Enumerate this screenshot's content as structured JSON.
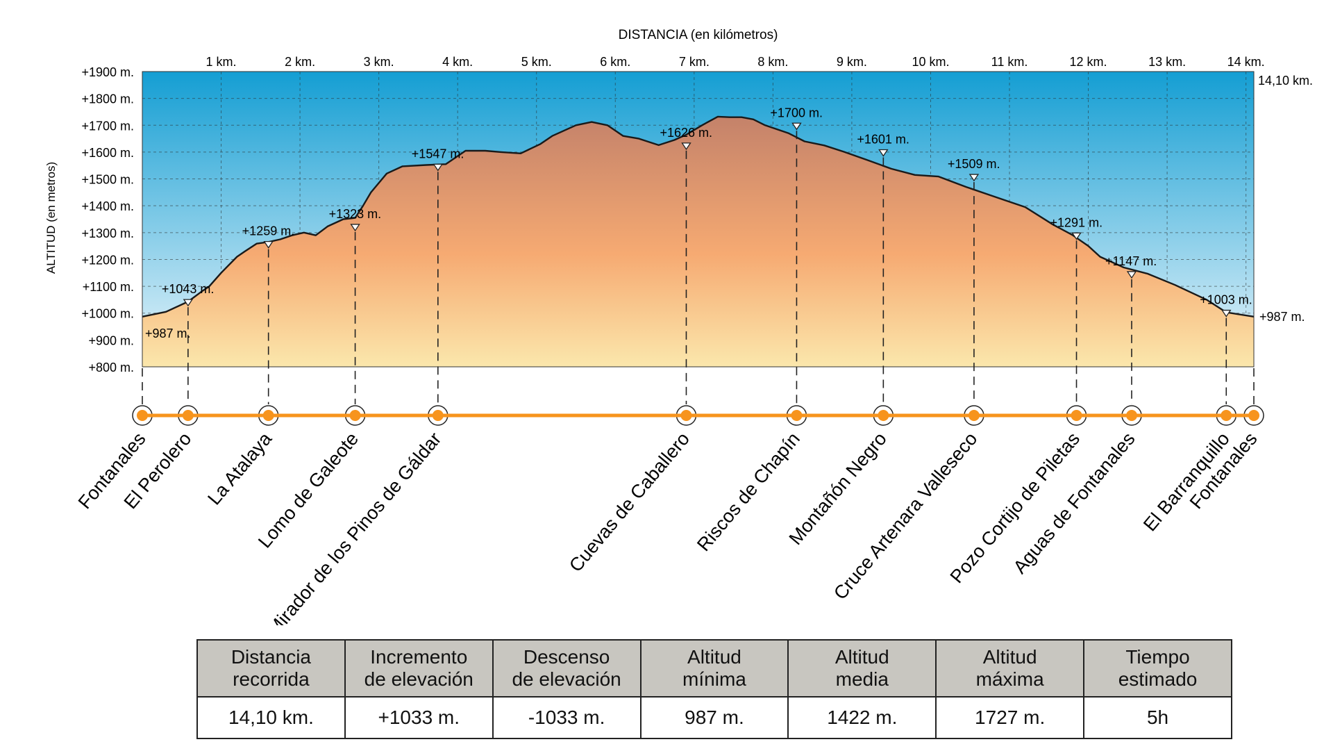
{
  "chart_data": {
    "type": "area",
    "title": "DISTANCIA (en kilómetros)",
    "xlabel": "DISTANCIA (en kilómetros)",
    "ylabel": "ALTITUD (en metros)",
    "xlim": [
      0,
      14.1
    ],
    "ylim": [
      800,
      1900
    ],
    "total_distance_label": "14,10 km.",
    "end_altitude_label": "+987 m.",
    "x_ticks": [
      1,
      2,
      3,
      4,
      5,
      6,
      7,
      8,
      9,
      10,
      11,
      12,
      13,
      14
    ],
    "x_tick_labels": [
      "1 km.",
      "2 km.",
      "3 km.",
      "4 km.",
      "5 km.",
      "6 km.",
      "7 km.",
      "8 km.",
      "9 km.",
      "10 km.",
      "11 km.",
      "12 km.",
      "13 km.",
      "14 km."
    ],
    "y_ticks": [
      800,
      900,
      1000,
      1100,
      1200,
      1300,
      1400,
      1500,
      1600,
      1700,
      1800,
      1900
    ],
    "y_tick_labels": [
      "+800 m.",
      "+900 m.",
      "+1000 m.",
      "+1100 m.",
      "+1200 m.",
      "+1300 m.",
      "+1400 m.",
      "+1500 m.",
      "+1600 m.",
      "+1700 m.",
      "+1800 m.",
      "+1900 m."
    ],
    "profile": {
      "x": [
        0,
        0.3,
        0.58,
        0.75,
        0.85,
        1.0,
        1.2,
        1.3,
        1.45,
        1.6,
        1.75,
        1.9,
        2.05,
        2.2,
        2.35,
        2.55,
        2.7,
        2.8,
        2.9,
        3.1,
        3.3,
        3.6,
        3.85,
        4.1,
        4.35,
        4.55,
        4.8,
        5.05,
        5.2,
        5.5,
        5.7,
        5.9,
        6.1,
        6.3,
        6.55,
        6.75,
        6.9,
        7.1,
        7.3,
        7.45,
        7.6,
        7.75,
        7.9,
        8.2,
        8.4,
        8.65,
        8.9,
        9.2,
        9.5,
        9.8,
        10.1,
        10.45,
        10.75,
        10.95,
        11.2,
        11.55,
        11.8,
        12.0,
        12.15,
        12.45,
        12.75,
        13.1,
        13.5,
        13.75,
        14.1
      ],
      "y": [
        987,
        1005,
        1043,
        1080,
        1100,
        1150,
        1210,
        1230,
        1259,
        1265,
        1275,
        1290,
        1300,
        1290,
        1323,
        1350,
        1355,
        1400,
        1450,
        1520,
        1547,
        1552,
        1555,
        1605,
        1605,
        1600,
        1595,
        1630,
        1660,
        1700,
        1712,
        1700,
        1660,
        1650,
        1626,
        1645,
        1665,
        1700,
        1732,
        1730,
        1730,
        1722,
        1700,
        1670,
        1640,
        1625,
        1601,
        1570,
        1538,
        1515,
        1509,
        1470,
        1440,
        1420,
        1395,
        1330,
        1291,
        1250,
        1210,
        1170,
        1147,
        1105,
        1050,
        1003,
        987
      ]
    },
    "waypoints": [
      {
        "name": "Fontanales",
        "km": 0.0,
        "alt": 987,
        "label": "+987 m."
      },
      {
        "name": "El Perolero",
        "km": 0.58,
        "alt": 1043,
        "label": "+1043 m."
      },
      {
        "name": "La Atalaya",
        "km": 1.6,
        "alt": 1259,
        "label": "+1259 m."
      },
      {
        "name": "Lomo de Galeote",
        "km": 2.7,
        "alt": 1323,
        "label": "+1323 m."
      },
      {
        "name": "Mirador de los Pinos de Gáldar",
        "km": 3.75,
        "alt": 1547,
        "label": "+1547 m."
      },
      {
        "name": "Cuevas de Caballero",
        "km": 6.9,
        "alt": 1626,
        "label": "+1626 m."
      },
      {
        "name": "Riscos de Chapín",
        "km": 8.3,
        "alt": 1700,
        "label": "+1700 m."
      },
      {
        "name": "Montañón Negro",
        "km": 9.4,
        "alt": 1601,
        "label": "+1601 m."
      },
      {
        "name": "Cruce Artenara Valleseco",
        "km": 10.55,
        "alt": 1509,
        "label": "+1509 m."
      },
      {
        "name": "Pozo Cortijo de Piletas",
        "km": 11.85,
        "alt": 1291,
        "label": "+1291 m."
      },
      {
        "name": "Aguas de Fontanales",
        "km": 12.55,
        "alt": 1147,
        "label": "+1147 m."
      },
      {
        "name": "El Barranquillo",
        "km": 13.75,
        "alt": 1003,
        "label": "+1003 m."
      },
      {
        "name": "Fontanales",
        "km": 14.1,
        "alt": 987,
        "label": ""
      }
    ],
    "colors": {
      "sky_top": "#149ed3",
      "sky_bottom": "#e9f5fb",
      "ground_top": "#c4826a",
      "ground_mid": "#f6aa72",
      "ground_bottom": "#fbe7ac",
      "route_line": "#f7941d",
      "marker_fill": "#f7941d"
    }
  },
  "stats_table": {
    "headers": [
      [
        "Distancia",
        "recorrida"
      ],
      [
        "Incremento",
        "de elevación"
      ],
      [
        "Descenso",
        "de elevación"
      ],
      [
        "Altitud",
        "mínima"
      ],
      [
        "Altitud",
        "media"
      ],
      [
        "Altitud",
        "máxima"
      ],
      [
        "Tiempo",
        "estimado"
      ]
    ],
    "values": [
      "14,10 km.",
      "+1033 m.",
      "-1033 m.",
      "987 m.",
      "1422 m.",
      "1727 m.",
      "5h"
    ]
  }
}
